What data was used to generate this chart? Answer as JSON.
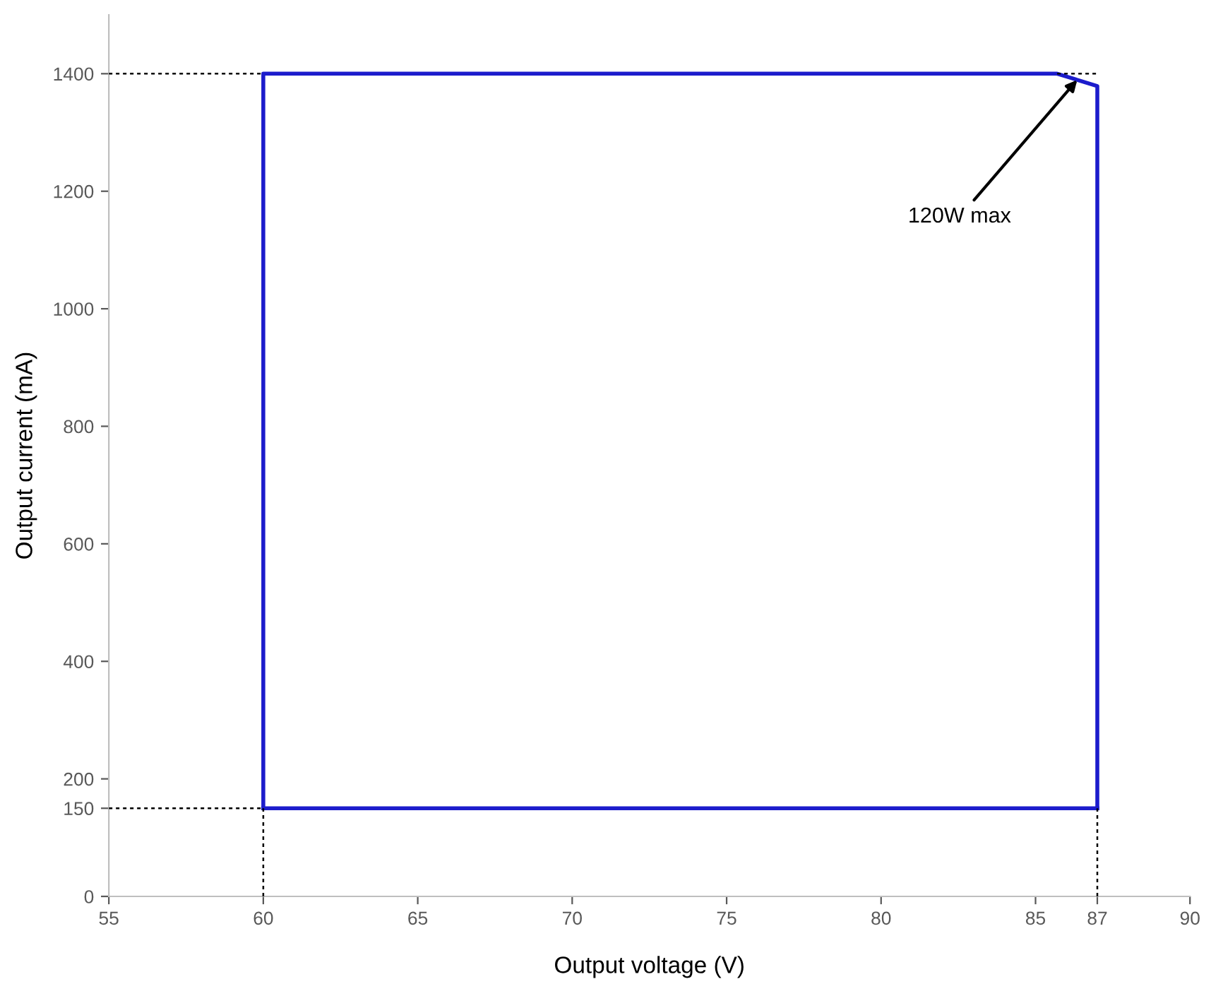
{
  "chart_data": {
    "type": "line",
    "xlabel": "Output voltage (V)",
    "ylabel": "Output current (mA)",
    "xlim": [
      55,
      90
    ],
    "xticks": [
      55,
      60,
      65,
      70,
      75,
      80,
      85,
      87,
      90
    ],
    "ylim": [
      0,
      1500
    ],
    "yticks": [
      0,
      150,
      200,
      400,
      600,
      800,
      1000,
      1200,
      1400
    ],
    "grid": false,
    "legend": false,
    "marker": "none",
    "series": [
      {
        "color": "#1c1ccc",
        "line_style": "solid",
        "x": [
          60,
          60,
          85.7,
          87,
          87
        ],
        "values": [
          150,
          1400,
          1400,
          1379,
          150
        ]
      },
      {
        "color": "#1c1ccc",
        "line_style": "solid",
        "x": [
          60,
          87
        ],
        "values": [
          150,
          150
        ]
      },
      {
        "color": "#000000",
        "line_style": "dashed",
        "x": [
          55,
          60
        ],
        "values": [
          1400,
          1400
        ]
      },
      {
        "color": "#000000",
        "line_style": "dashed",
        "x": [
          85.7,
          87
        ],
        "values": [
          1400,
          1400
        ]
      },
      {
        "color": "#000000",
        "line_style": "dashed",
        "x": [
          55,
          60
        ],
        "values": [
          150,
          150
        ]
      },
      {
        "color": "#000000",
        "line_style": "dashed",
        "x": [
          60,
          60
        ],
        "values": [
          0,
          150
        ]
      },
      {
        "color": "#000000",
        "line_style": "dashed",
        "x": [
          87,
          87
        ],
        "values": [
          0,
          150
        ]
      }
    ],
    "annotations": [
      {
        "text": "120W max",
        "x": 86.35,
        "y": 1389.5
      }
    ]
  }
}
